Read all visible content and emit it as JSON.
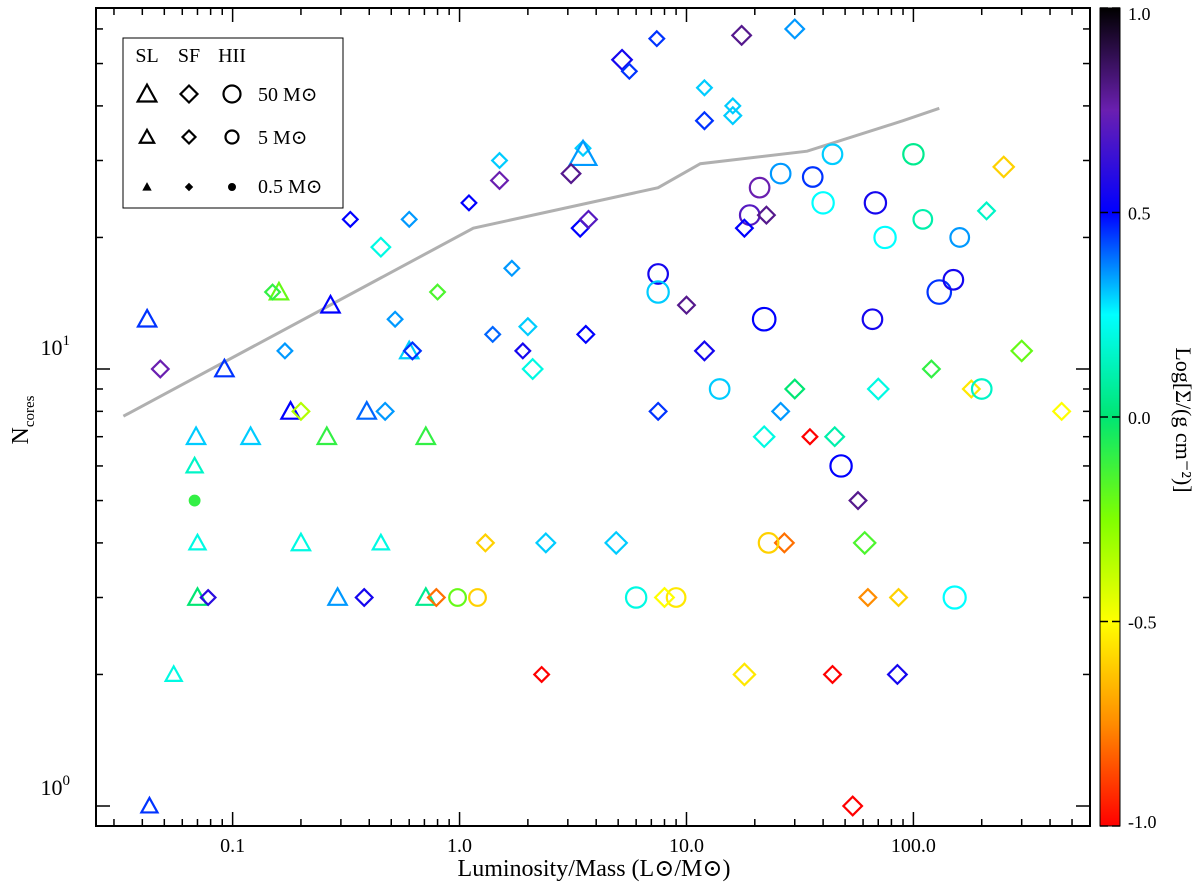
{
  "chart_data": {
    "type": "scatter",
    "xlabel": "Luminosity/Mass (L⊙/M⊙)",
    "ylabel_main": "N",
    "ylabel_sub": "cores",
    "x_scale": "log",
    "y_scale": "log",
    "xlim": [
      0.025,
      600
    ],
    "ylim": [
      0.9,
      67
    ],
    "x_ticks": [
      {
        "value": 0.1,
        "label": "0.1"
      },
      {
        "value": 1.0,
        "label": "1.0"
      },
      {
        "value": 10.0,
        "label": "10.0"
      },
      {
        "value": 100.0,
        "label": "100.0"
      }
    ],
    "y_ticks": [
      {
        "value": 1,
        "base": "10",
        "exp": "0"
      },
      {
        "value": 10,
        "base": "10",
        "exp": "1"
      }
    ],
    "colorbar": {
      "label": "Log[Σ/(g cm⁻²)]",
      "range": [
        -1.0,
        1.0
      ],
      "ticks": [
        {
          "value": 1.0,
          "label": "1.0"
        },
        {
          "value": 0.5,
          "label": "0.5"
        },
        {
          "value": 0.0,
          "label": "0.0"
        },
        {
          "value": -0.5,
          "label": "-0.5"
        },
        {
          "value": -1.0,
          "label": "-1.0"
        }
      ]
    },
    "legend": {
      "position": "top-left",
      "columns": [
        "SL",
        "SF",
        "HII"
      ],
      "rows": [
        "50 M⊙",
        "5 M⊙",
        "0.5 M⊙"
      ]
    },
    "line": {
      "name": "",
      "color": "#b0b0b0",
      "points": [
        {
          "x": 0.033,
          "y": 7.8
        },
        {
          "x": 1.15,
          "y": 21
        },
        {
          "x": 7.5,
          "y": 26
        },
        {
          "x": 11.5,
          "y": 29.5
        },
        {
          "x": 34,
          "y": 31.5
        },
        {
          "x": 90,
          "y": 37
        },
        {
          "x": 130,
          "y": 39.5
        }
      ]
    },
    "points": [
      {
        "x": 0.042,
        "y": 13,
        "shape": "triangle",
        "mass": 5,
        "logS": 0.45
      },
      {
        "x": 0.048,
        "y": 10,
        "shape": "diamond",
        "mass": 5,
        "logS": 0.75
      },
      {
        "x": 0.092,
        "y": 10,
        "shape": "triangle",
        "mass": 5,
        "logS": 0.45
      },
      {
        "x": 0.16,
        "y": 15,
        "shape": "triangle",
        "mass": 5,
        "logS": -0.2
      },
      {
        "x": 0.27,
        "y": 14,
        "shape": "triangle",
        "mass": 5,
        "logS": 0.5
      },
      {
        "x": 0.6,
        "y": 11,
        "shape": "triangle",
        "mass": 5,
        "logS": 0.3
      },
      {
        "x": 0.18,
        "y": 8,
        "shape": "triangle",
        "mass": 5,
        "logS": 0.5
      },
      {
        "x": 0.33,
        "y": 22,
        "shape": "diamond",
        "mass": 3,
        "logS": 0.5
      },
      {
        "x": 0.6,
        "y": 22,
        "shape": "diamond",
        "mass": 3,
        "logS": 0.35
      },
      {
        "x": 1.1,
        "y": 24,
        "shape": "diamond",
        "mass": 3,
        "logS": 0.5
      },
      {
        "x": 3.5,
        "y": 32,
        "shape": "diamond",
        "mass": 3,
        "logS": 0.3
      },
      {
        "x": 3.5,
        "y": 31,
        "shape": "triangle",
        "mass": 30,
        "logS": 0.35
      },
      {
        "x": 5.2,
        "y": 51,
        "shape": "diamond",
        "mass": 10,
        "logS": 0.55
      },
      {
        "x": 5.6,
        "y": 48,
        "shape": "diamond",
        "mass": 3,
        "logS": 0.45
      },
      {
        "x": 7.4,
        "y": 57,
        "shape": "diamond",
        "mass": 3,
        "logS": 0.45
      },
      {
        "x": 17.5,
        "y": 58,
        "shape": "diamond",
        "mass": 8,
        "logS": 0.8
      },
      {
        "x": 30,
        "y": 60,
        "shape": "diamond",
        "mass": 8,
        "logS": 0.35
      },
      {
        "x": 12,
        "y": 44,
        "shape": "diamond",
        "mass": 3,
        "logS": 0.3
      },
      {
        "x": 16,
        "y": 40,
        "shape": "diamond",
        "mass": 3,
        "logS": 0.3
      },
      {
        "x": 12,
        "y": 37,
        "shape": "diamond",
        "mass": 5,
        "logS": 0.45
      },
      {
        "x": 16,
        "y": 38,
        "shape": "diamond",
        "mass": 5,
        "logS": 0.3
      },
      {
        "x": 1.5,
        "y": 30,
        "shape": "diamond",
        "mass": 3,
        "logS": 0.3
      },
      {
        "x": 1.5,
        "y": 27,
        "shape": "diamond",
        "mass": 5,
        "logS": 0.75
      },
      {
        "x": 3.1,
        "y": 28,
        "shape": "diamond",
        "mass": 8,
        "logS": 0.8
      },
      {
        "x": 3.4,
        "y": 21,
        "shape": "diamond",
        "mass": 5,
        "logS": 0.5
      },
      {
        "x": 3.7,
        "y": 22,
        "shape": "diamond",
        "mass": 5,
        "logS": 0.7
      },
      {
        "x": 21,
        "y": 26,
        "shape": "circle",
        "mass": 10,
        "logS": 0.75
      },
      {
        "x": 19,
        "y": 22.5,
        "shape": "circle",
        "mass": 10,
        "logS": 0.7
      },
      {
        "x": 22.5,
        "y": 22.5,
        "shape": "diamond",
        "mass": 5,
        "logS": 0.8
      },
      {
        "x": 18,
        "y": 21,
        "shape": "diamond",
        "mass": 5,
        "logS": 0.5
      },
      {
        "x": 36,
        "y": 27.5,
        "shape": "circle",
        "mass": 10,
        "logS": 0.45
      },
      {
        "x": 68,
        "y": 24,
        "shape": "circle",
        "mass": 15,
        "logS": 0.55
      },
      {
        "x": 40,
        "y": 24,
        "shape": "circle",
        "mass": 15,
        "logS": 0.25
      },
      {
        "x": 44,
        "y": 31,
        "shape": "circle",
        "mass": 10,
        "logS": 0.3
      },
      {
        "x": 26,
        "y": 28,
        "shape": "circle",
        "mass": 10,
        "logS": 0.35
      },
      {
        "x": 7.5,
        "y": 16.5,
        "shape": "circle",
        "mass": 10,
        "logS": 0.55
      },
      {
        "x": 7.5,
        "y": 15,
        "shape": "circle",
        "mass": 15,
        "logS": 0.3
      },
      {
        "x": 10,
        "y": 14,
        "shape": "diamond",
        "mass": 5,
        "logS": 0.8
      },
      {
        "x": 22,
        "y": 13,
        "shape": "circle",
        "mass": 20,
        "logS": 0.5
      },
      {
        "x": 12,
        "y": 11,
        "shape": "diamond",
        "mass": 8,
        "logS": 0.55
      },
      {
        "x": 130,
        "y": 15,
        "shape": "circle",
        "mass": 25,
        "logS": 0.45
      },
      {
        "x": 150,
        "y": 16,
        "shape": "circle",
        "mass": 10,
        "logS": 0.55
      },
      {
        "x": 66,
        "y": 13,
        "shape": "circle",
        "mass": 10,
        "logS": 0.55
      },
      {
        "x": 75,
        "y": 20,
        "shape": "circle",
        "mass": 15,
        "logS": 0.25
      },
      {
        "x": 160,
        "y": 20,
        "shape": "circle",
        "mass": 8,
        "logS": 0.35
      },
      {
        "x": 110,
        "y": 22,
        "shape": "circle",
        "mass": 8,
        "logS": 0.1
      },
      {
        "x": 100,
        "y": 31,
        "shape": "circle",
        "mass": 12,
        "logS": 0.05
      },
      {
        "x": 250,
        "y": 29,
        "shape": "diamond",
        "mass": 12,
        "logS": -0.6
      },
      {
        "x": 210,
        "y": 23,
        "shape": "diamond",
        "mass": 5,
        "logS": 0.15
      },
      {
        "x": 300,
        "y": 11,
        "shape": "diamond",
        "mass": 12,
        "logS": -0.2
      },
      {
        "x": 450,
        "y": 8,
        "shape": "diamond",
        "mass": 5,
        "logS": -0.5
      },
      {
        "x": 180,
        "y": 9,
        "shape": "diamond",
        "mass": 5,
        "logS": -0.55
      },
      {
        "x": 200,
        "y": 9,
        "shape": "circle",
        "mass": 10,
        "logS": 0.15
      },
      {
        "x": 120,
        "y": 10,
        "shape": "diamond",
        "mass": 5,
        "logS": -0.1
      },
      {
        "x": 70,
        "y": 9,
        "shape": "diamond",
        "mass": 12,
        "logS": 0.2
      },
      {
        "x": 48,
        "y": 6,
        "shape": "circle",
        "mass": 15,
        "logS": 0.5
      },
      {
        "x": 152,
        "y": 3,
        "shape": "circle",
        "mass": 18,
        "logS": 0.25
      },
      {
        "x": 57,
        "y": 5,
        "shape": "diamond",
        "mass": 5,
        "logS": 0.8
      },
      {
        "x": 61,
        "y": 4,
        "shape": "diamond",
        "mass": 15,
        "logS": -0.15
      },
      {
        "x": 27,
        "y": 4,
        "shape": "diamond",
        "mass": 8,
        "logS": -0.8
      },
      {
        "x": 85,
        "y": 2,
        "shape": "diamond",
        "mass": 8,
        "logS": 0.55
      },
      {
        "x": 44,
        "y": 2,
        "shape": "diamond",
        "mass": 5,
        "logS": -1.0
      },
      {
        "x": 54,
        "y": 1,
        "shape": "diamond",
        "mass": 8,
        "logS": -1.0
      },
      {
        "x": 35,
        "y": 7,
        "shape": "diamond",
        "mass": 3,
        "logS": -1.0
      },
      {
        "x": 18,
        "y": 2,
        "shape": "diamond",
        "mass": 15,
        "logS": -0.55
      },
      {
        "x": 2.3,
        "y": 2,
        "shape": "diamond",
        "mass": 3,
        "logS": -1.0
      },
      {
        "x": 0.055,
        "y": 2,
        "shape": "triangle",
        "mass": 3,
        "logS": 0.2
      },
      {
        "x": 0.043,
        "y": 1,
        "shape": "triangle",
        "mass": 3,
        "logS": 0.45
      },
      {
        "x": 0.069,
        "y": 7,
        "shape": "triangle",
        "mass": 5,
        "logS": 0.3
      },
      {
        "x": 0.07,
        "y": 3,
        "shape": "triangle",
        "mass": 5,
        "logS": 0.0
      },
      {
        "x": 0.078,
        "y": 3,
        "shape": "diamond",
        "mass": 3,
        "logS": 0.6
      },
      {
        "x": 0.068,
        "y": 6,
        "shape": "triangle",
        "mass": 3,
        "logS": 0.15
      },
      {
        "x": 0.068,
        "y": 5,
        "shape": "circle",
        "mass": 1,
        "logS": -0.1
      },
      {
        "x": 0.07,
        "y": 4,
        "shape": "triangle",
        "mass": 3,
        "logS": 0.2
      },
      {
        "x": 0.29,
        "y": 3,
        "shape": "triangle",
        "mass": 5,
        "logS": 0.35
      },
      {
        "x": 0.71,
        "y": 3,
        "shape": "triangle",
        "mass": 5,
        "logS": 0.05
      },
      {
        "x": 0.79,
        "y": 3,
        "shape": "diamond",
        "mass": 5,
        "logS": -0.8
      },
      {
        "x": 0.98,
        "y": 3,
        "shape": "circle",
        "mass": 5,
        "logS": -0.2
      },
      {
        "x": 1.2,
        "y": 3,
        "shape": "circle",
        "mass": 5,
        "logS": -0.6
      },
      {
        "x": 0.38,
        "y": 3,
        "shape": "diamond",
        "mass": 5,
        "logS": 0.55
      },
      {
        "x": 6.0,
        "y": 3,
        "shape": "circle",
        "mass": 12,
        "logS": 0.2
      },
      {
        "x": 9.0,
        "y": 3,
        "shape": "circle",
        "mass": 8,
        "logS": -0.55
      },
      {
        "x": 8.0,
        "y": 3,
        "shape": "diamond",
        "mass": 8,
        "logS": -0.5
      },
      {
        "x": 63,
        "y": 3,
        "shape": "diamond",
        "mass": 5,
        "logS": -0.75
      },
      {
        "x": 86,
        "y": 3,
        "shape": "diamond",
        "mass": 5,
        "logS": -0.6
      },
      {
        "x": 0.2,
        "y": 4,
        "shape": "triangle",
        "mass": 5,
        "logS": 0.2
      },
      {
        "x": 0.45,
        "y": 4,
        "shape": "triangle",
        "mass": 3,
        "logS": 0.2
      },
      {
        "x": 1.3,
        "y": 4,
        "shape": "diamond",
        "mass": 5,
        "logS": -0.6
      },
      {
        "x": 2.4,
        "y": 4,
        "shape": "diamond",
        "mass": 8,
        "logS": 0.3
      },
      {
        "x": 4.9,
        "y": 4,
        "shape": "diamond",
        "mass": 15,
        "logS": 0.3
      },
      {
        "x": 23,
        "y": 4,
        "shape": "circle",
        "mass": 10,
        "logS": -0.6
      },
      {
        "x": 0.26,
        "y": 7,
        "shape": "triangle",
        "mass": 5,
        "logS": -0.1
      },
      {
        "x": 0.12,
        "y": 7,
        "shape": "triangle",
        "mass": 5,
        "logS": 0.3
      },
      {
        "x": 0.71,
        "y": 7,
        "shape": "triangle",
        "mass": 5,
        "logS": -0.1
      },
      {
        "x": 22,
        "y": 7,
        "shape": "diamond",
        "mass": 12,
        "logS": 0.2
      },
      {
        "x": 45,
        "y": 7,
        "shape": "diamond",
        "mass": 8,
        "logS": 0.1
      },
      {
        "x": 0.39,
        "y": 8,
        "shape": "triangle",
        "mass": 5,
        "logS": 0.4
      },
      {
        "x": 0.47,
        "y": 8,
        "shape": "diamond",
        "mass": 5,
        "logS": 0.35
      },
      {
        "x": 0.2,
        "y": 8,
        "shape": "diamond",
        "mass": 5,
        "logS": -0.35
      },
      {
        "x": 7.5,
        "y": 8,
        "shape": "diamond",
        "mass": 5,
        "logS": 0.45
      },
      {
        "x": 26,
        "y": 8,
        "shape": "diamond",
        "mass": 5,
        "logS": 0.35
      },
      {
        "x": 30,
        "y": 9,
        "shape": "diamond",
        "mass": 8,
        "logS": 0.0
      },
      {
        "x": 14,
        "y": 9,
        "shape": "circle",
        "mass": 10,
        "logS": 0.3
      },
      {
        "x": 0.62,
        "y": 11,
        "shape": "diamond",
        "mass": 5,
        "logS": 0.45
      },
      {
        "x": 0.17,
        "y": 11,
        "shape": "diamond",
        "mass": 3,
        "logS": 0.35
      },
      {
        "x": 1.9,
        "y": 11,
        "shape": "diamond",
        "mass": 3,
        "logS": 0.55
      },
      {
        "x": 3.6,
        "y": 12,
        "shape": "diamond",
        "mass": 5,
        "logS": 0.5
      },
      {
        "x": 1.4,
        "y": 12,
        "shape": "diamond",
        "mass": 3,
        "logS": 0.4
      },
      {
        "x": 2.1,
        "y": 10,
        "shape": "diamond",
        "mass": 10,
        "logS": 0.2
      },
      {
        "x": 0.15,
        "y": 15,
        "shape": "diamond",
        "mass": 3,
        "logS": -0.1
      },
      {
        "x": 0.45,
        "y": 19,
        "shape": "diamond",
        "mass": 8,
        "logS": 0.2
      },
      {
        "x": 0.52,
        "y": 13,
        "shape": "diamond",
        "mass": 3,
        "logS": 0.35
      },
      {
        "x": 1.7,
        "y": 17,
        "shape": "diamond",
        "mass": 3,
        "logS": 0.35
      },
      {
        "x": 2.0,
        "y": 12.5,
        "shape": "diamond",
        "mass": 5,
        "logS": 0.3
      },
      {
        "x": 0.8,
        "y": 15,
        "shape": "diamond",
        "mass": 3,
        "logS": -0.15
      }
    ]
  }
}
